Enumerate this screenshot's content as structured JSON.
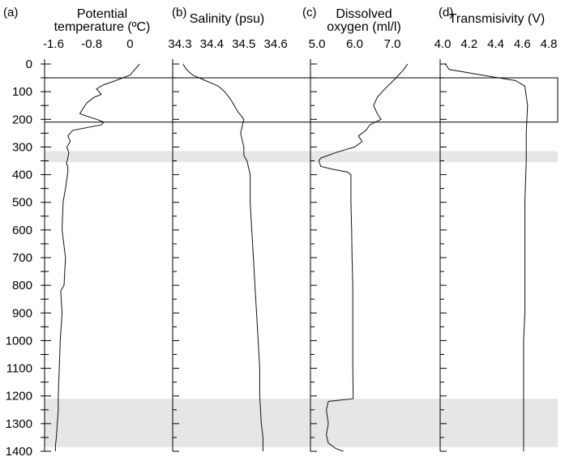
{
  "chart_data": [
    {
      "type": "line",
      "panel_label": "(a)",
      "title_lines": [
        "Potential",
        "temperature (ºC)"
      ],
      "x_ticks": [
        "-1.6",
        "-0.8",
        "0"
      ],
      "xlim": [
        -1.6,
        0.4
      ],
      "ylim": [
        0,
        1400
      ],
      "y_inverted": true,
      "y_ticks": [
        "0",
        "100",
        "200",
        "300",
        "400",
        "500",
        "600",
        "700",
        "800",
        "900",
        "1000",
        "1100",
        "1200",
        "1300",
        "1400"
      ],
      "series": [
        {
          "x": [
            0.2,
            0.15,
            0.1,
            0.0,
            -0.3,
            -0.55,
            -0.7,
            -0.6,
            -0.75,
            -0.9,
            -0.98,
            -1.05,
            -0.7,
            -0.55,
            -0.6,
            -1.2,
            -1.3,
            -1.25,
            -1.32,
            -1.28,
            -1.3,
            -1.33,
            -1.3,
            -1.3,
            -1.35,
            -1.4,
            -1.42,
            -1.35,
            -1.38,
            -1.45,
            -1.42,
            -1.46,
            -1.48,
            -1.5,
            -1.5,
            -1.52,
            -1.54,
            -1.56,
            -1.56
          ],
          "y": [
            0,
            10,
            20,
            40,
            60,
            75,
            90,
            110,
            120,
            140,
            160,
            180,
            200,
            210,
            220,
            240,
            260,
            280,
            300,
            320,
            340,
            360,
            370,
            390,
            450,
            500,
            600,
            700,
            800,
            820,
            900,
            1000,
            1100,
            1200,
            1250,
            1300,
            1350,
            1380,
            1400
          ]
        }
      ]
    },
    {
      "type": "line",
      "panel_label": "(b)",
      "title_lines": [
        "Salinity (psu)"
      ],
      "x_ticks": [
        "34.3",
        "34.4",
        "34.5",
        "34.6"
      ],
      "xlim": [
        34.3,
        34.62
      ],
      "ylim": [
        0,
        1400
      ],
      "y_inverted": true,
      "series": [
        {
          "x": [
            34.31,
            34.32,
            34.34,
            34.38,
            34.42,
            34.44,
            34.46,
            34.48,
            34.5,
            34.49,
            34.5,
            34.5,
            34.51,
            34.52,
            34.52,
            34.525,
            34.53,
            34.535,
            34.54,
            34.545,
            34.55,
            34.55,
            34.555,
            34.56,
            34.56
          ],
          "y": [
            0,
            20,
            40,
            60,
            80,
            100,
            130,
            170,
            200,
            250,
            300,
            330,
            350,
            400,
            500,
            600,
            700,
            800,
            900,
            1000,
            1100,
            1200,
            1300,
            1350,
            1400
          ]
        }
      ]
    },
    {
      "type": "line",
      "panel_label": "(c)",
      "title_lines": [
        "Dissolved",
        "oxygen (ml/l)"
      ],
      "x_ticks": [
        "5.0",
        "6.0",
        "7.0"
      ],
      "xlim": [
        5.0,
        7.6
      ],
      "ylim": [
        0,
        1400
      ],
      "y_inverted": true,
      "series": [
        {
          "x": [
            7.4,
            7.3,
            7.1,
            6.8,
            6.6,
            6.5,
            6.6,
            6.7,
            6.4,
            6.3,
            6.1,
            6.2,
            6.0,
            5.5,
            5.1,
            5.05,
            5.1,
            5.4,
            5.8,
            5.9,
            5.9,
            5.92,
            5.93,
            5.95,
            5.95,
            5.95,
            5.95,
            5.96,
            5.96,
            5.3,
            5.25,
            5.3,
            5.25,
            5.3,
            5.5,
            5.7
          ],
          "y": [
            0,
            20,
            50,
            90,
            120,
            150,
            180,
            200,
            220,
            240,
            260,
            280,
            300,
            320,
            340,
            350,
            370,
            380,
            390,
            400,
            500,
            600,
            700,
            800,
            900,
            1000,
            1100,
            1200,
            1210,
            1220,
            1250,
            1300,
            1340,
            1370,
            1390,
            1400
          ]
        }
      ]
    },
    {
      "type": "line",
      "panel_label": "(d)",
      "title_lines": [
        "Transmisivity (V)"
      ],
      "x_ticks": [
        "4.0",
        "4.2",
        "4.4",
        "4.6",
        "4.8"
      ],
      "xlim": [
        4.0,
        4.8
      ],
      "ylim": [
        0,
        1400
      ],
      "y_inverted": true,
      "series": [
        {
          "x": [
            4.02,
            4.05,
            4.3,
            4.55,
            4.62,
            4.64,
            4.63,
            4.63,
            4.62,
            4.62,
            4.62,
            4.61,
            4.61,
            4.61,
            4.61,
            4.61
          ],
          "y": [
            0,
            20,
            40,
            60,
            80,
            150,
            250,
            350,
            500,
            700,
            900,
            1000,
            1100,
            1200,
            1300,
            1400
          ]
        }
      ]
    }
  ],
  "highlight_bands": [
    {
      "y": [
        315,
        355
      ],
      "style": "shaded"
    },
    {
      "y": [
        1210,
        1385
      ],
      "style": "shaded"
    },
    {
      "y": [
        50,
        210
      ],
      "style": "outlined"
    }
  ]
}
